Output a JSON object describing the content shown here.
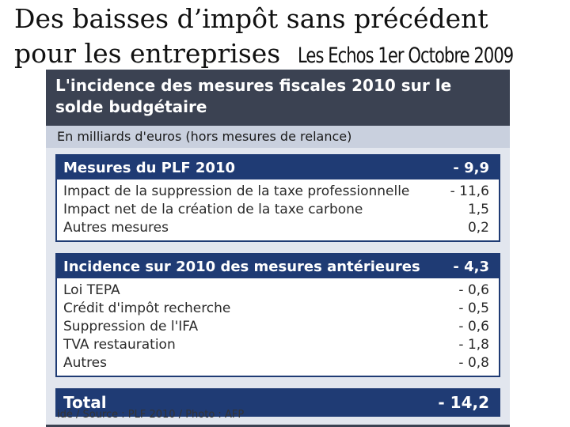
{
  "headline": {
    "line1": "Des baisses d’impôt sans précédent",
    "line2": "pour les entreprises",
    "source": "Les Echos 1er Octobre 2009"
  },
  "panel": {
    "title": "L'incidence des mesures fiscales 2010 sur le solde budgétaire",
    "unit_note": "En milliards d'euros (hors mesures de relance)",
    "sections": [
      {
        "label": "Mesures du PLF 2010",
        "value": "- 9,9",
        "rows": [
          {
            "label": "Impact de la suppression de la taxe professionnelle",
            "value": "- 11,6"
          },
          {
            "label": "Impact net de la création de la taxe carbone",
            "value": "1,5"
          },
          {
            "label": "Autres mesures",
            "value": "0,2"
          }
        ]
      },
      {
        "label": "Incidence sur 2010 des mesures antérieures",
        "value": "- 4,3",
        "rows": [
          {
            "label": "Loi TEPA",
            "value": "- 0,6"
          },
          {
            "label": "Crédit d'impôt recherche",
            "value": "- 0,5"
          },
          {
            "label": "Suppression de l'IFA",
            "value": "- 0,6"
          },
          {
            "label": "TVA  restauration",
            "value": "- 1,8"
          },
          {
            "label": "Autres",
            "value": "- 0,8"
          }
        ]
      }
    ],
    "total": {
      "label": "Total",
      "value": "- 14,2"
    },
    "credit": "idé / Source : PLF 2010 / Photo : AFP"
  }
}
